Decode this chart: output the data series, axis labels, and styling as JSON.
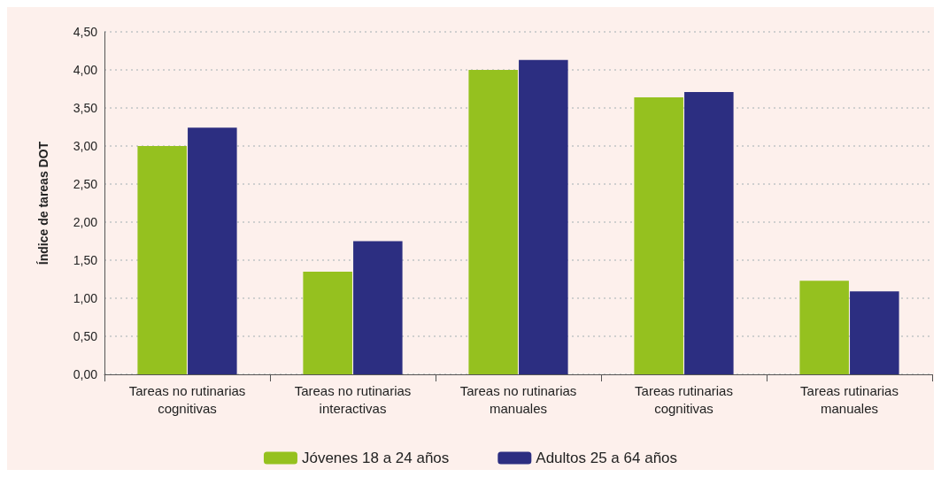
{
  "chart_data": {
    "type": "bar",
    "ylabel": "Índice de tareas DOT",
    "categories": [
      "Tareas no rutinarias\ncognitivas",
      "Tareas no rutinarias\ninteractivas",
      "Tareas no rutinarias\nmanuales",
      "Tareas rutinarias\ncognitivas",
      "Tareas rutinarias\nmanuales"
    ],
    "series": [
      {
        "name": "Jóvenes 18 a 24 años",
        "color": "#95c11f",
        "values": [
          3.0,
          1.35,
          4.0,
          3.64,
          1.23
        ]
      },
      {
        "name": "Adultos 25 a 64 años",
        "color": "#2c2e81",
        "values": [
          3.24,
          1.75,
          4.13,
          3.71,
          1.09
        ]
      }
    ],
    "ylim": [
      0,
      4.5
    ],
    "yticks": [
      {
        "value": 0,
        "label": "0,00"
      },
      {
        "value": 0.5,
        "label": "0,50"
      },
      {
        "value": 1,
        "label": "1,00"
      },
      {
        "value": 1.5,
        "label": "1,50"
      },
      {
        "value": 2,
        "label": "2,00"
      },
      {
        "value": 2.5,
        "label": "2,50"
      },
      {
        "value": 3,
        "label": "3,00"
      },
      {
        "value": 3.5,
        "label": "3,50"
      },
      {
        "value": 4,
        "label": "4,00"
      },
      {
        "value": 4.5,
        "label": "4,50"
      }
    ],
    "grid": "y",
    "legend": "bottom"
  }
}
